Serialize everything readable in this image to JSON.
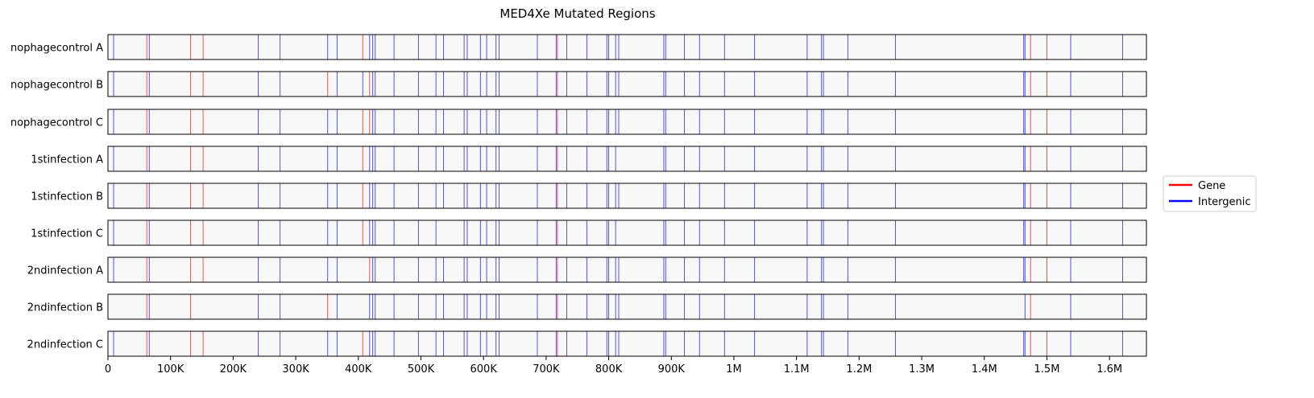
{
  "chart_data": {
    "type": "event-tracks",
    "title": "MED4Xe Mutated Regions",
    "xlim": [
      0,
      1659000
    ],
    "x_ticks": [
      0,
      100000,
      200000,
      300000,
      400000,
      500000,
      600000,
      700000,
      800000,
      900000,
      1000000,
      1100000,
      1200000,
      1300000,
      1400000,
      1500000,
      1600000
    ],
    "x_tick_labels": [
      "0",
      "100K",
      "200K",
      "300K",
      "400K",
      "500K",
      "600K",
      "700K",
      "800K",
      "900K",
      "1M",
      "1.1M",
      "1.2M",
      "1.3M",
      "1.4M",
      "1.5M",
      "1.6M"
    ],
    "legend": {
      "placement": "right",
      "entries": [
        {
          "label": "Gene",
          "color": "#ff0000"
        },
        {
          "label": "Intergenic",
          "color": "#0000ff"
        }
      ]
    },
    "colors": {
      "Gene": "#ff0000",
      "Intergenic": "#0000ff",
      "track_fill": "#f8f8f8"
    },
    "tracks": [
      {
        "label": "nophagecontrol A",
        "gene": [
          62000,
          132000,
          152000,
          407000,
          718000,
          1474000,
          1500000
        ],
        "intergenic": [
          9000,
          66000,
          240000,
          275000,
          351000,
          366000,
          418000,
          423000,
          427000,
          457000,
          496000,
          524000,
          536000,
          569000,
          574000,
          595000,
          605000,
          620000,
          625000,
          686000,
          716000,
          733000,
          765000,
          797000,
          800000,
          811000,
          816000,
          888000,
          891000,
          921000,
          945000,
          985000,
          1033000,
          1117000,
          1140000,
          1143000,
          1182000,
          1258000,
          1463000,
          1465000,
          1538000,
          1621000
        ]
      },
      {
        "label": "nophagecontrol B",
        "gene": [
          62000,
          132000,
          152000,
          351000,
          418000,
          718000,
          1474000,
          1500000
        ],
        "intergenic": [
          9000,
          66000,
          240000,
          275000,
          366000,
          407000,
          423000,
          427000,
          457000,
          496000,
          524000,
          536000,
          569000,
          574000,
          595000,
          605000,
          620000,
          625000,
          686000,
          716000,
          733000,
          765000,
          797000,
          800000,
          811000,
          816000,
          888000,
          891000,
          921000,
          945000,
          985000,
          1033000,
          1117000,
          1140000,
          1143000,
          1182000,
          1258000,
          1463000,
          1465000,
          1538000,
          1621000
        ]
      },
      {
        "label": "nophagecontrol C",
        "gene": [
          62000,
          132000,
          152000,
          407000,
          418000,
          718000,
          1474000,
          1500000
        ],
        "intergenic": [
          9000,
          66000,
          240000,
          275000,
          351000,
          366000,
          423000,
          427000,
          457000,
          496000,
          524000,
          536000,
          569000,
          574000,
          595000,
          605000,
          620000,
          625000,
          686000,
          716000,
          733000,
          765000,
          797000,
          800000,
          811000,
          816000,
          888000,
          891000,
          921000,
          945000,
          985000,
          1033000,
          1117000,
          1140000,
          1143000,
          1182000,
          1258000,
          1463000,
          1465000,
          1538000,
          1621000
        ]
      },
      {
        "label": "1stinfection A",
        "gene": [
          62000,
          132000,
          152000,
          407000,
          718000,
          1474000,
          1500000
        ],
        "intergenic": [
          9000,
          66000,
          240000,
          275000,
          351000,
          366000,
          418000,
          423000,
          427000,
          457000,
          496000,
          524000,
          536000,
          569000,
          574000,
          595000,
          605000,
          620000,
          625000,
          686000,
          716000,
          733000,
          765000,
          797000,
          800000,
          811000,
          888000,
          891000,
          921000,
          945000,
          985000,
          1033000,
          1117000,
          1140000,
          1143000,
          1182000,
          1258000,
          1463000,
          1465000,
          1538000,
          1621000
        ]
      },
      {
        "label": "1stinfection B",
        "gene": [
          62000,
          132000,
          152000,
          407000,
          718000,
          1474000,
          1500000
        ],
        "intergenic": [
          9000,
          66000,
          240000,
          275000,
          351000,
          366000,
          418000,
          423000,
          427000,
          457000,
          496000,
          524000,
          536000,
          569000,
          574000,
          595000,
          605000,
          620000,
          625000,
          686000,
          716000,
          733000,
          765000,
          797000,
          800000,
          811000,
          816000,
          888000,
          891000,
          921000,
          945000,
          985000,
          1033000,
          1117000,
          1140000,
          1143000,
          1182000,
          1258000,
          1463000,
          1465000,
          1538000,
          1621000
        ]
      },
      {
        "label": "1stinfection C",
        "gene": [
          62000,
          132000,
          152000,
          407000,
          718000,
          1474000,
          1500000
        ],
        "intergenic": [
          9000,
          66000,
          240000,
          275000,
          351000,
          366000,
          418000,
          423000,
          427000,
          457000,
          496000,
          524000,
          569000,
          574000,
          595000,
          605000,
          620000,
          625000,
          686000,
          716000,
          733000,
          765000,
          797000,
          800000,
          811000,
          888000,
          891000,
          921000,
          945000,
          985000,
          1033000,
          1117000,
          1140000,
          1143000,
          1182000,
          1258000,
          1463000,
          1465000,
          1538000,
          1621000
        ]
      },
      {
        "label": "2ndinfection A",
        "gene": [
          62000,
          132000,
          152000,
          418000,
          718000,
          1474000,
          1500000
        ],
        "intergenic": [
          9000,
          66000,
          240000,
          275000,
          351000,
          366000,
          423000,
          427000,
          457000,
          496000,
          524000,
          536000,
          569000,
          574000,
          595000,
          605000,
          620000,
          625000,
          686000,
          716000,
          733000,
          765000,
          797000,
          800000,
          811000,
          816000,
          888000,
          891000,
          921000,
          945000,
          985000,
          1033000,
          1117000,
          1140000,
          1143000,
          1182000,
          1258000,
          1463000,
          1465000,
          1538000,
          1621000
        ]
      },
      {
        "label": "2ndinfection B",
        "gene": [
          62000,
          132000,
          351000,
          718000,
          1474000
        ],
        "intergenic": [
          66000,
          240000,
          275000,
          366000,
          418000,
          423000,
          427000,
          457000,
          496000,
          524000,
          536000,
          569000,
          574000,
          595000,
          605000,
          620000,
          625000,
          686000,
          716000,
          733000,
          765000,
          797000,
          800000,
          811000,
          816000,
          888000,
          891000,
          921000,
          945000,
          985000,
          1033000,
          1117000,
          1140000,
          1143000,
          1182000,
          1258000,
          1465000,
          1538000,
          1621000
        ]
      },
      {
        "label": "2ndinfection C",
        "gene": [
          62000,
          132000,
          152000,
          407000,
          718000,
          1474000,
          1500000
        ],
        "intergenic": [
          9000,
          66000,
          240000,
          275000,
          351000,
          366000,
          418000,
          423000,
          427000,
          457000,
          496000,
          524000,
          536000,
          569000,
          574000,
          595000,
          605000,
          620000,
          625000,
          686000,
          716000,
          733000,
          765000,
          797000,
          800000,
          811000,
          816000,
          888000,
          891000,
          921000,
          945000,
          985000,
          1033000,
          1117000,
          1140000,
          1143000,
          1182000,
          1258000,
          1463000,
          1465000,
          1538000,
          1621000
        ]
      }
    ]
  }
}
